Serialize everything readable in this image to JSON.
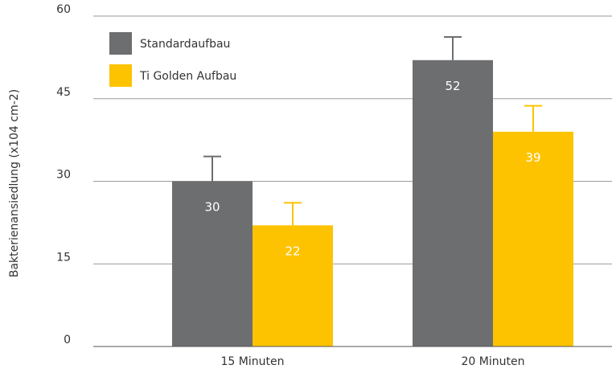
{
  "chart_data": {
    "type": "bar",
    "title": "",
    "xlabel": "",
    "ylabel": "Bakterienansiedlung (x104 cm-2)",
    "categories": [
      "15 Minuten",
      "20 Minuten"
    ],
    "series": [
      {
        "name": "Standardaufbau",
        "color": "#6d6e70",
        "values": [
          30,
          52
        ],
        "error": [
          4.5,
          4.2
        ],
        "labels": [
          "30",
          "52"
        ]
      },
      {
        "name": "Ti Golden Aufbau",
        "color": "#fdc300",
        "values": [
          22,
          39
        ],
        "error": [
          4.1,
          4.7
        ],
        "labels": [
          "22",
          "39"
        ]
      }
    ],
    "ylim": [
      0,
      60
    ],
    "yticks": [
      0,
      15,
      30,
      45,
      60
    ],
    "ytick_labels": [
      "0",
      "15",
      "30",
      "45",
      "60"
    ],
    "grid": true,
    "legend_position": "top-left"
  }
}
